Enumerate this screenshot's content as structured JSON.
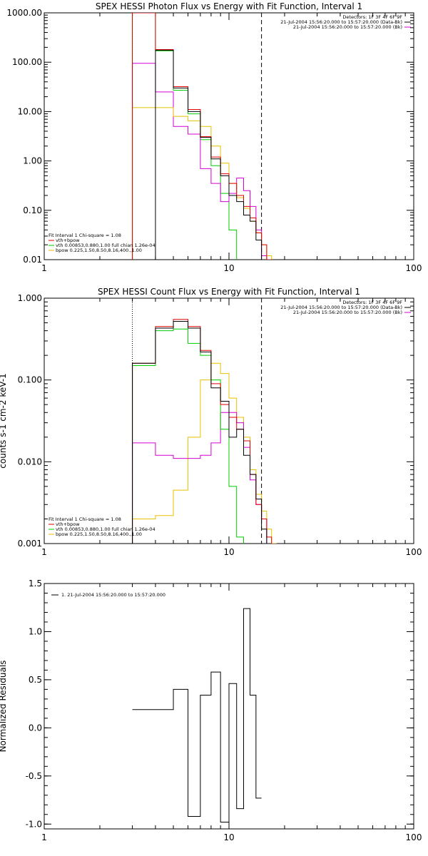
{
  "colors": {
    "total": "#000000",
    "model": "#e00000",
    "vth": "#00cc00",
    "bpow": "#e8c000",
    "bk": "#d400d4"
  },
  "chart_data": [
    {
      "type": "line",
      "title": "SPEX HESSI Photon Flux vs Energy with Fit Function, Interval 1",
      "xscale": "log",
      "yscale": "log",
      "xlim": [
        1,
        100
      ],
      "ylim": [
        0.01,
        1000
      ],
      "xticks": [
        {
          "v": 1,
          "label": "1"
        },
        {
          "v": 10,
          "label": "10"
        },
        {
          "v": 100,
          "label": "100"
        }
      ],
      "yticks": [
        {
          "v": 0.01,
          "label": "0.01"
        },
        {
          "v": 0.1,
          "label": "0.10"
        },
        {
          "v": 1,
          "label": "1.00"
        },
        {
          "v": 10,
          "label": "10.00"
        },
        {
          "v": 100,
          "label": "100.00"
        },
        {
          "v": 1000,
          "label": "1000.00"
        }
      ],
      "vlines": [
        {
          "x": 3,
          "style": "dotted"
        },
        {
          "x": 15,
          "style": "dashed"
        }
      ],
      "info": [
        "Detectors: 1F 3F 4F 6F 9F",
        "21-Jul-2004 15:56:20.000 to 15:57:20.000 (Data-Bk)",
        "21-Jul-2004 15:56:20.000 to 15:57:20.000 (Bk)"
      ],
      "info_colors": [
        "",
        "total",
        "bk"
      ],
      "fit_label": [
        "Fit Interval  1    Chi-square = 1.08",
        "vth+bpow",
        "vth 0.00853,0.880,1.00   full chian 1.26e-04",
        "bpow 0.225,1.50,8.50,8.16,400.,1.00"
      ],
      "fit_colors": [
        "",
        "model",
        "vth",
        "bpow"
      ],
      "edges": [
        3,
        4,
        5,
        6,
        7,
        8,
        9,
        10,
        11,
        12,
        13,
        14,
        15,
        16,
        17,
        18
      ],
      "series": [
        {
          "key": "vth",
          "values": [
            1000,
            170,
            27,
            9,
            2.7,
            0.8,
            0.22,
            0.04,
            0.008,
            0.003,
            null,
            null,
            null,
            null,
            null
          ]
        },
        {
          "key": "bk",
          "values": [
            95,
            25,
            5,
            3.5,
            0.7,
            0.35,
            0.15,
            0.22,
            0.45,
            0.25,
            0.12,
            0.04,
            0.012,
            null,
            null
          ]
        },
        {
          "key": "bpow",
          "values": [
            12,
            12,
            8,
            6.5,
            5,
            2,
            0.9,
            0.35,
            0.18,
            0.11,
            0.06,
            0.035,
            0.02,
            0.012,
            null
          ]
        },
        {
          "key": "model",
          "values": [
            1000,
            180,
            32,
            11,
            3.1,
            1.2,
            0.55,
            0.35,
            0.2,
            0.12,
            0.07,
            0.035,
            0.02,
            0.01,
            null
          ]
        },
        {
          "key": "total",
          "values": [
            null,
            175,
            30,
            10,
            3,
            1.1,
            0.5,
            0.2,
            0.15,
            0.08,
            0.06,
            0.025,
            null,
            null,
            null
          ]
        }
      ]
    },
    {
      "type": "line",
      "title": "SPEX HESSI Count Flux vs Energy with Fit Function, Interval 1",
      "ylabel": "counts s-1 cm-2 keV-1",
      "xscale": "log",
      "yscale": "log",
      "xlim": [
        1,
        100
      ],
      "ylim": [
        0.001,
        1
      ],
      "xticks": [
        {
          "v": 1,
          "label": "1"
        },
        {
          "v": 10,
          "label": "10"
        },
        {
          "v": 100,
          "label": "100"
        }
      ],
      "yticks": [
        {
          "v": 0.001,
          "label": "0.001"
        },
        {
          "v": 0.01,
          "label": "0.010"
        },
        {
          "v": 0.1,
          "label": "0.100"
        },
        {
          "v": 1,
          "label": "1.000"
        }
      ],
      "vlines": [
        {
          "x": 3,
          "style": "dotted"
        },
        {
          "x": 15,
          "style": "dashed"
        }
      ],
      "info": [
        "Detectors: 1F 3F 4F 6F 9F",
        "21-Jul-2004 15:56:20.000 to 15:57:20.000 (Data-Bk)",
        "21-Jul-2004 15:56:20.000 to 15:57:20.000 (Bk)"
      ],
      "info_colors": [
        "",
        "total",
        "bk"
      ],
      "fit_label": [
        "Fit Interval  1    Chi-square = 1.08",
        "vth+bpow",
        "vth 0.00853,0.880,1.00   full chian 1.26e-04",
        "bpow 0.225,1.50,8.50,8.16,400.,1.00"
      ],
      "fit_colors": [
        "",
        "model",
        "vth",
        "bpow"
      ],
      "edges": [
        3,
        4,
        5,
        6,
        7,
        8,
        9,
        10,
        11,
        12,
        13,
        14,
        15,
        16,
        17,
        18
      ],
      "series": [
        {
          "key": "bpow",
          "values": [
            0.002,
            0.0022,
            0.0045,
            0.02,
            0.1,
            0.16,
            0.12,
            0.06,
            0.035,
            0.02,
            0.008,
            0.004,
            0.0025,
            0.0015,
            0.001
          ]
        },
        {
          "key": "bk",
          "values": [
            0.017,
            0.012,
            0.011,
            0.011,
            0.012,
            0.017,
            0.04,
            0.04,
            0.03,
            0.015,
            0.006,
            0.003,
            0.002,
            null,
            null
          ]
        },
        {
          "key": "vth",
          "values": [
            0.15,
            0.4,
            0.42,
            0.28,
            0.2,
            0.1,
            0.025,
            0.005,
            0.0012,
            null,
            null,
            null,
            null,
            null,
            null
          ]
        },
        {
          "key": "model",
          "values": [
            0.16,
            0.45,
            0.55,
            0.45,
            0.23,
            0.09,
            0.05,
            0.035,
            0.025,
            0.018,
            0.007,
            0.003,
            0.002,
            0.0012,
            null
          ]
        },
        {
          "key": "total",
          "values": [
            0.16,
            0.43,
            0.52,
            0.43,
            0.22,
            0.08,
            0.055,
            0.02,
            0.025,
            0.012,
            0.007,
            0.0035,
            0.0015,
            null,
            null
          ]
        }
      ]
    },
    {
      "type": "line",
      "title": "",
      "ylabel": "Normalized Residuals",
      "xscale": "log",
      "yscale": "linear",
      "xlim": [
        1,
        100
      ],
      "ylim": [
        -1.05,
        1.5
      ],
      "xticks": [
        {
          "v": 1,
          "label": "1"
        },
        {
          "v": 10,
          "label": "10"
        },
        {
          "v": 100,
          "label": "100"
        }
      ],
      "yticks": [
        {
          "v": -1,
          "label": "-1.0"
        },
        {
          "v": -0.5,
          "label": "-0.5"
        },
        {
          "v": 0,
          "label": "0.0"
        },
        {
          "v": 0.5,
          "label": "0.5"
        },
        {
          "v": 1,
          "label": "1.0"
        },
        {
          "v": 1.5,
          "label": "1.5"
        }
      ],
      "legend": "1. 21-Jul-2004 15:56:20.000 to 15:57:20.000",
      "edges": [
        3,
        4,
        5,
        6,
        7,
        8,
        9,
        10,
        11,
        12,
        13,
        14,
        15
      ],
      "series": [
        {
          "key": "total",
          "values": [
            0.19,
            0.19,
            0.4,
            -0.92,
            0.34,
            0.58,
            -0.98,
            0.46,
            -0.84,
            1.24,
            0.34,
            -0.73
          ]
        }
      ]
    }
  ]
}
